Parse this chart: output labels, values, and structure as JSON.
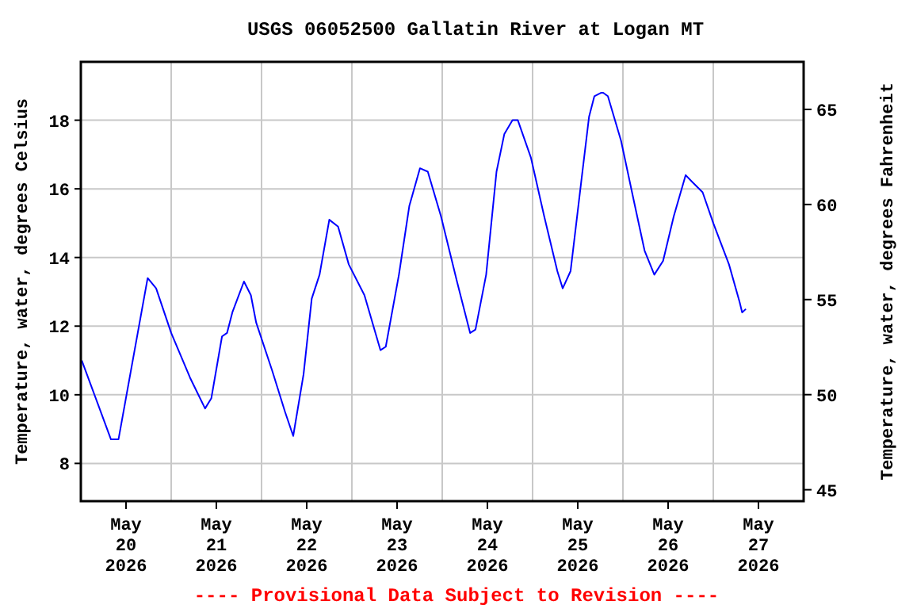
{
  "chart_data": {
    "type": "line",
    "title": "USGS 06052500 Gallatin River at Logan MT",
    "ylabel": "Temperature, water, degrees Celsius",
    "y2label": "Temperature, water, degrees Fahrenheit",
    "annotations": [
      "---- Provisional Data Subject to Revision ----"
    ],
    "x": [
      "2026-05-19T12:15",
      "2026-05-19T20:00",
      "2026-05-19T22:00",
      "2026-05-20T05:45",
      "2026-05-20T08:00",
      "2026-05-20T12:00",
      "2026-05-20T17:00",
      "2026-05-20T21:00",
      "2026-05-20T22:40",
      "2026-05-21T01:30",
      "2026-05-21T02:50",
      "2026-05-21T04:15",
      "2026-05-21T07:20",
      "2026-05-21T09:10",
      "2026-05-21T10:35",
      "2026-05-21T14:50",
      "2026-05-21T18:15",
      "2026-05-21T20:25",
      "2026-05-21T23:10",
      "2026-05-22T01:20",
      "2026-05-22T03:25",
      "2026-05-22T06:00",
      "2026-05-22T08:20",
      "2026-05-22T11:10",
      "2026-05-22T15:20",
      "2026-05-22T19:35",
      "2026-05-22T21:00",
      "2026-05-23T00:30",
      "2026-05-23T03:15",
      "2026-05-23T06:05",
      "2026-05-23T08:10",
      "2026-05-23T11:40",
      "2026-05-23T15:55",
      "2026-05-23T19:25",
      "2026-05-23T20:50",
      "2026-05-23T23:40",
      "2026-05-24T02:25",
      "2026-05-24T04:30",
      "2026-05-24T06:40",
      "2026-05-24T08:05",
      "2026-05-24T11:35",
      "2026-05-24T15:05",
      "2026-05-24T18:35",
      "2026-05-24T20:00",
      "2026-05-24T22:05",
      "2026-05-25T00:55",
      "2026-05-25T03:00",
      "2026-05-25T04:25",
      "2026-05-25T06:15",
      "2026-05-25T06:45",
      "2026-05-25T08:00",
      "2026-05-25T11:30",
      "2026-05-25T15:00",
      "2026-05-25T17:45",
      "2026-05-25T20:20",
      "2026-05-25T22:40",
      "2026-05-26T01:30",
      "2026-05-26T04:40",
      "2026-05-26T06:25",
      "2026-05-26T09:10",
      "2026-05-26T12:00",
      "2026-05-26T16:10",
      "2026-05-26T19:00",
      "2026-05-26T19:40",
      "2026-05-26T20:40"
    ],
    "values": [
      11.0,
      8.7,
      8.7,
      13.4,
      13.1,
      11.8,
      10.5,
      9.6,
      9.9,
      11.7,
      11.8,
      12.4,
      13.3,
      12.9,
      12.1,
      10.7,
      9.5,
      8.8,
      10.6,
      12.8,
      13.5,
      15.1,
      14.9,
      13.8,
      12.9,
      11.3,
      11.4,
      13.5,
      15.5,
      16.6,
      16.5,
      15.2,
      13.3,
      11.8,
      11.9,
      13.5,
      16.5,
      17.6,
      18.0,
      18.0,
      16.9,
      15.2,
      13.6,
      13.1,
      13.6,
      16.2,
      18.1,
      18.7,
      18.8,
      18.8,
      18.7,
      17.4,
      15.6,
      14.2,
      13.5,
      13.9,
      15.2,
      16.4,
      16.2,
      15.9,
      15.0,
      13.8,
      12.7,
      12.4,
      12.5
    ],
    "color": "#0000ff",
    "xlim": [
      "2026-05-19T12:00",
      "2026-05-27T12:00"
    ],
    "xticks": [
      {
        "value": "2026-05-20T00:00",
        "label": "May\n20\n2026"
      },
      {
        "value": "2026-05-21T00:00",
        "label": "May\n21\n2026"
      },
      {
        "value": "2026-05-22T00:00",
        "label": "May\n22\n2026"
      },
      {
        "value": "2026-05-23T00:00",
        "label": "May\n23\n2026"
      },
      {
        "value": "2026-05-24T00:00",
        "label": "May\n24\n2026"
      },
      {
        "value": "2026-05-25T00:00",
        "label": "May\n25\n2026"
      },
      {
        "value": "2026-05-26T00:00",
        "label": "May\n26\n2026"
      },
      {
        "value": "2026-05-27T00:00",
        "label": "May\n27\n2026"
      },
      {
        "value": "2026-05-20T12:00",
        "label": null
      },
      {
        "value": "2026-05-21T12:00",
        "label": null
      },
      {
        "value": "2026-05-22T12:00",
        "label": null
      },
      {
        "value": "2026-05-23T12:00",
        "label": null
      },
      {
        "value": "2026-05-24T12:00",
        "label": null
      },
      {
        "value": "2026-05-25T12:00",
        "label": null
      },
      {
        "value": "2026-05-26T12:00",
        "label": null
      }
    ],
    "ylim": [
      6.9,
      19.7
    ],
    "yticks": [
      8,
      10,
      12,
      14,
      16,
      18
    ],
    "y2lim": [
      44.4,
      67.5
    ],
    "y2ticks": [
      45,
      50,
      55,
      60,
      65
    ],
    "grid": true,
    "marker": "none",
    "line_style": "solid"
  }
}
